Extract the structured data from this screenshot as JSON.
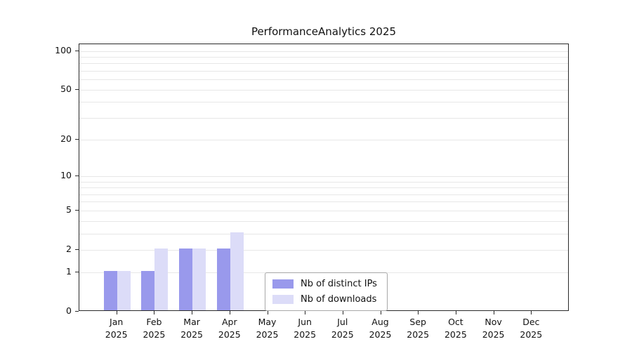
{
  "title": "PerformanceAnalytics 2025",
  "chart_data": {
    "type": "bar",
    "scale": "log1p",
    "title": "PerformanceAnalytics 2025",
    "categories": [
      "Jan 2025",
      "Feb 2025",
      "Mar 2025",
      "Apr 2025",
      "May 2025",
      "Jun 2025",
      "Jul 2025",
      "Aug 2025",
      "Sep 2025",
      "Oct 2025",
      "Nov 2025",
      "Dec 2025"
    ],
    "series": [
      {
        "name": "Nb of distinct IPs",
        "color": "#9999ec",
        "values": [
          1,
          1,
          2,
          2,
          0,
          0,
          0,
          0,
          0,
          0,
          0,
          0
        ]
      },
      {
        "name": "Nb of downloads",
        "color": "#dcdcf8",
        "values": [
          1,
          2,
          2,
          3,
          0,
          0,
          0,
          0,
          0,
          0,
          0,
          0
        ]
      }
    ],
    "y_ticks": [
      0,
      1,
      2,
      5,
      10,
      20,
      50,
      100
    ],
    "minor_gridlines": [
      1,
      2,
      3,
      4,
      5,
      6,
      7,
      8,
      9,
      10,
      20,
      30,
      40,
      50,
      60,
      70,
      80,
      90,
      100
    ],
    "ylim": [
      0,
      100
    ],
    "xlabel": "",
    "ylabel": "",
    "grid": "on",
    "legend_position": "bottom-center"
  }
}
